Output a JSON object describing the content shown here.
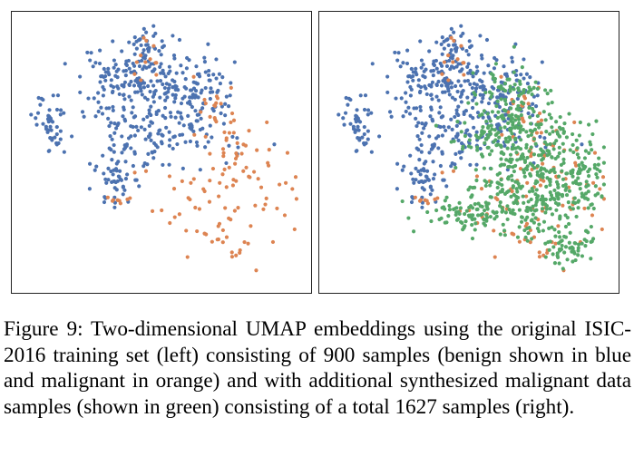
{
  "figure": {
    "caption": {
      "label": "Figure 9:",
      "text": " Two-dimensional UMAP embeddings using the original ISIC-2016 training set (left) consisting of 900 samples (benign shown in blue and malignant in orange) and with additional synthesized malignant data samples (shown in green) consisting of a total 1627 samples (right)."
    }
  },
  "colors": {
    "benign": "#4c72b0",
    "malignant": "#dd8452",
    "synthesized": "#55a868",
    "frame": "#222222"
  },
  "chart_data": [
    {
      "type": "scatter",
      "title": "",
      "position": "left",
      "total_samples": 900,
      "axes_visible": false,
      "series": [
        {
          "name": "benign",
          "color": "#4c72b0",
          "clusters": [
            {
              "center": [
                0.46,
                0.08
              ],
              "spread": [
                0.04,
                0.03
              ],
              "n": 30
            },
            {
              "center": [
                0.38,
                0.24
              ],
              "spread": [
                0.1,
                0.07
              ],
              "n": 140
            },
            {
              "center": [
                0.58,
                0.26
              ],
              "spread": [
                0.09,
                0.07
              ],
              "n": 120
            },
            {
              "center": [
                0.55,
                0.43
              ],
              "spread": [
                0.11,
                0.06
              ],
              "n": 90
            },
            {
              "center": [
                0.38,
                0.48
              ],
              "spread": [
                0.05,
                0.05
              ],
              "n": 35
            },
            {
              "center": [
                0.11,
                0.4
              ],
              "spread": [
                0.03,
                0.05
              ],
              "n": 45
            },
            {
              "center": [
                0.34,
                0.62
              ],
              "spread": [
                0.04,
                0.05
              ],
              "n": 40
            },
            {
              "center": [
                0.26,
                0.37
              ],
              "spread": [
                0.03,
                0.01
              ],
              "n": 4
            }
          ]
        },
        {
          "name": "malignant",
          "color": "#dd8452",
          "clusters": [
            {
              "center": [
                0.45,
                0.12
              ],
              "spread": [
                0.03,
                0.05
              ],
              "n": 12
            },
            {
              "center": [
                0.68,
                0.32
              ],
              "spread": [
                0.05,
                0.05
              ],
              "n": 18
            },
            {
              "center": [
                0.74,
                0.48
              ],
              "spread": [
                0.07,
                0.06
              ],
              "n": 30
            },
            {
              "center": [
                0.7,
                0.7
              ],
              "spread": [
                0.12,
                0.1
              ],
              "n": 55
            },
            {
              "center": [
                0.35,
                0.68
              ],
              "spread": [
                0.02,
                0.01
              ],
              "n": 8
            },
            {
              "center": [
                0.88,
                0.6
              ],
              "spread": [
                0.05,
                0.05
              ],
              "n": 8
            },
            {
              "center": [
                0.72,
                0.84
              ],
              "spread": [
                0.04,
                0.04
              ],
              "n": 10
            }
          ]
        }
      ]
    },
    {
      "type": "scatter",
      "title": "",
      "position": "right",
      "total_samples": 1627,
      "axes_visible": false,
      "series": [
        {
          "name": "benign",
          "color": "#4c72b0",
          "clusters": [
            {
              "center": [
                0.46,
                0.08
              ],
              "spread": [
                0.04,
                0.03
              ],
              "n": 30
            },
            {
              "center": [
                0.38,
                0.24
              ],
              "spread": [
                0.1,
                0.07
              ],
              "n": 140
            },
            {
              "center": [
                0.58,
                0.26
              ],
              "spread": [
                0.09,
                0.07
              ],
              "n": 120
            },
            {
              "center": [
                0.55,
                0.43
              ],
              "spread": [
                0.11,
                0.06
              ],
              "n": 90
            },
            {
              "center": [
                0.38,
                0.48
              ],
              "spread": [
                0.05,
                0.05
              ],
              "n": 35
            },
            {
              "center": [
                0.11,
                0.4
              ],
              "spread": [
                0.03,
                0.05
              ],
              "n": 45
            },
            {
              "center": [
                0.34,
                0.62
              ],
              "spread": [
                0.04,
                0.05
              ],
              "n": 40
            },
            {
              "center": [
                0.26,
                0.37
              ],
              "spread": [
                0.03,
                0.01
              ],
              "n": 4
            }
          ]
        },
        {
          "name": "malignant",
          "color": "#dd8452",
          "clusters": [
            {
              "center": [
                0.45,
                0.12
              ],
              "spread": [
                0.03,
                0.05
              ],
              "n": 12
            },
            {
              "center": [
                0.68,
                0.32
              ],
              "spread": [
                0.05,
                0.05
              ],
              "n": 18
            },
            {
              "center": [
                0.74,
                0.48
              ],
              "spread": [
                0.07,
                0.06
              ],
              "n": 30
            },
            {
              "center": [
                0.7,
                0.7
              ],
              "spread": [
                0.12,
                0.1
              ],
              "n": 55
            },
            {
              "center": [
                0.35,
                0.68
              ],
              "spread": [
                0.02,
                0.01
              ],
              "n": 8
            },
            {
              "center": [
                0.88,
                0.6
              ],
              "spread": [
                0.05,
                0.05
              ],
              "n": 8
            },
            {
              "center": [
                0.72,
                0.84
              ],
              "spread": [
                0.04,
                0.04
              ],
              "n": 10
            }
          ]
        },
        {
          "name": "synthesized",
          "color": "#55a868",
          "clusters": [
            {
              "center": [
                0.62,
                0.42
              ],
              "spread": [
                0.09,
                0.08
              ],
              "n": 160
            },
            {
              "center": [
                0.78,
                0.55
              ],
              "spread": [
                0.1,
                0.1
              ],
              "n": 190
            },
            {
              "center": [
                0.7,
                0.68
              ],
              "spread": [
                0.1,
                0.07
              ],
              "n": 140
            },
            {
              "center": [
                0.55,
                0.74
              ],
              "spread": [
                0.1,
                0.04
              ],
              "n": 90
            },
            {
              "center": [
                0.86,
                0.86
              ],
              "spread": [
                0.05,
                0.04
              ],
              "n": 60
            },
            {
              "center": [
                0.64,
                0.26
              ],
              "spread": [
                0.05,
                0.05
              ],
              "n": 50
            },
            {
              "center": [
                0.92,
                0.62
              ],
              "spread": [
                0.03,
                0.08
              ],
              "n": 37
            }
          ]
        }
      ]
    }
  ]
}
